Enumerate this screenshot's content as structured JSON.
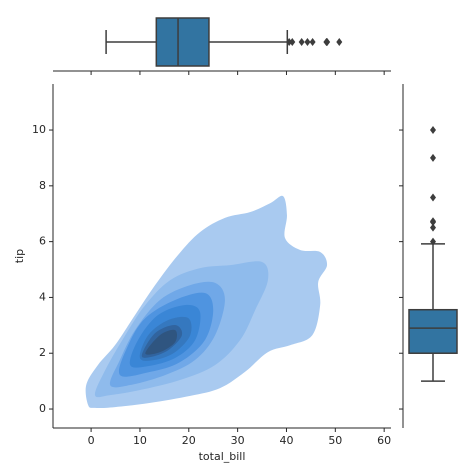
{
  "chart_data": {
    "type": "kde",
    "xlabel": "total_bill",
    "ylabel": "tip",
    "xlim": [
      -7.8,
      61.4
    ],
    "ylim": [
      -0.68,
      11.65
    ],
    "xticks": [
      0,
      10,
      20,
      30,
      40,
      50,
      60
    ],
    "yticks": [
      0,
      2,
      4,
      6,
      8,
      10
    ],
    "contours": [
      {
        "color": "#a9caf0",
        "x": [
          -0.6,
          -1.0,
          1.4,
          4.9,
          9.0,
          13.1,
          17.8,
          22.3,
          27.4,
          32.6,
          36.7,
          39.3,
          40.1,
          39.7,
          42.8,
          46.9,
          48.3,
          46.5,
          46.9,
          45.3,
          40.8,
          36.2,
          31.5,
          26.4,
          20.3,
          12.1,
          4.9,
          0.8
        ],
        "y": [
          0.14,
          0.86,
          1.58,
          2.29,
          3.37,
          4.44,
          5.52,
          6.34,
          6.85,
          7.06,
          7.38,
          7.63,
          6.95,
          6.13,
          5.7,
          5.63,
          5.16,
          4.55,
          3.73,
          2.65,
          2.29,
          2.04,
          1.33,
          0.75,
          0.47,
          0.22,
          0.07,
          0.04
        ]
      },
      {
        "color": "#8fbbec",
        "x": [
          0.8,
          2.9,
          7.0,
          11.1,
          16.2,
          22.3,
          28.5,
          35.0,
          36.2,
          33.6,
          30.5,
          25.4,
          18.2,
          10.0,
          3.9
        ],
        "y": [
          0.5,
          1.4,
          2.65,
          3.73,
          4.62,
          5.05,
          5.16,
          5.27,
          4.62,
          3.55,
          2.47,
          1.58,
          1.04,
          0.68,
          0.5
        ]
      },
      {
        "color": "#70a8e8",
        "x": [
          3.9,
          5.9,
          9.0,
          14.1,
          20.3,
          25.4,
          27.4,
          25.4,
          21.3,
          15.2,
          8.0
        ],
        "y": [
          0.86,
          1.76,
          2.83,
          3.91,
          4.44,
          4.52,
          3.91,
          2.65,
          1.76,
          1.22,
          0.86
        ]
      },
      {
        "color": "#4f94e0",
        "x": [
          5.9,
          7.6,
          11.1,
          17.2,
          23.3,
          25.0,
          23.3,
          18.2,
          12.1
        ],
        "y": [
          1.22,
          2.29,
          3.26,
          3.91,
          4.16,
          3.55,
          2.47,
          1.68,
          1.33
        ]
      },
      {
        "color": "#3a86d6",
        "x": [
          8.0,
          9.6,
          13.7,
          19.3,
          22.3,
          21.3,
          17.2,
          11.7
        ],
        "y": [
          1.58,
          2.47,
          3.37,
          3.73,
          3.48,
          2.47,
          1.83,
          1.54
        ]
      },
      {
        "color": "#3578bf",
        "x": [
          10.0,
          11.7,
          15.8,
          19.9,
          20.3,
          17.2,
          13.1
        ],
        "y": [
          1.83,
          2.65,
          3.19,
          3.26,
          2.65,
          2.04,
          1.76
        ]
      },
      {
        "color": "#31649f",
        "x": [
          10.4,
          13.1,
          17.2,
          18.6,
          15.8,
          12.1
        ],
        "y": [
          1.94,
          2.72,
          3.01,
          2.65,
          2.11,
          1.86
        ]
      },
      {
        "color": "#2f5580",
        "x": [
          11.1,
          14.1,
          17.2,
          17.2,
          14.1
        ],
        "y": [
          2.0,
          2.65,
          2.83,
          2.4,
          2.04
        ]
      }
    ],
    "box_color": "#3274a1",
    "x_box": {
      "whisker_low": 3.07,
      "q1": 13.35,
      "median": 17.8,
      "q3": 24.13,
      "whisker_high": 40.17,
      "outliers": [
        40.55,
        41.19,
        43.11,
        44.3,
        45.35,
        48.17,
        48.27,
        48.33,
        50.81
      ]
    },
    "y_box": {
      "whisker_low": 1.0,
      "q1": 2.0,
      "median": 2.9,
      "q3": 3.56,
      "whisker_high": 5.92,
      "outliers": [
        6.0,
        6.5,
        6.7,
        6.73,
        7.58,
        9.0,
        10.0
      ]
    }
  }
}
